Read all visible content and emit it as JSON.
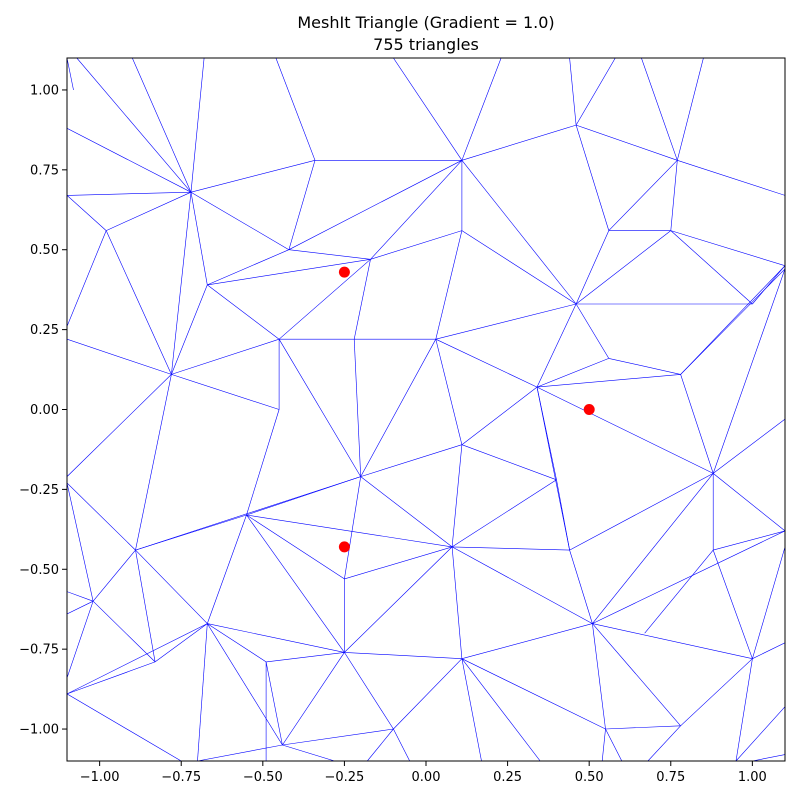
{
  "chart_data": {
    "type": "scatter",
    "title": "MeshIt Triangle (Gradient = 1.0)",
    "subtitle": "755 triangles",
    "xlabel": "",
    "ylabel": "",
    "xlim": [
      -1.1,
      1.1
    ],
    "ylim": [
      -1.1,
      1.1
    ],
    "grid": false,
    "legend": "none",
    "x_ticks": [
      -1.0,
      -0.75,
      -0.5,
      -0.25,
      0.0,
      0.25,
      0.5,
      0.75,
      1.0
    ],
    "x_tick_labels": [
      "−1.00",
      "−0.75",
      "−0.50",
      "−0.25",
      "0.00",
      "0.25",
      "0.50",
      "0.75",
      "1.00"
    ],
    "y_ticks": [
      1.0,
      0.75,
      0.5,
      0.25,
      0.0,
      -0.25,
      -0.5,
      -0.75,
      -1.0
    ],
    "y_tick_labels": [
      "1.00",
      "0.75",
      "0.50",
      "0.25",
      "0.00",
      "−0.25",
      "−0.50",
      "−0.75",
      "−1.00"
    ],
    "mesh_color": "#0000ff",
    "point_color": "#ff0000",
    "points": [
      {
        "x": -0.25,
        "y": 0.43
      },
      {
        "x": 0.5,
        "y": 0.0
      },
      {
        "x": -0.25,
        "y": -0.43
      }
    ],
    "mesh_edges": [
      [
        [
          -1.1,
          1.1
        ],
        [
          -1.08,
          1.0
        ]
      ],
      [
        [
          -1.07,
          1.1
        ],
        [
          -0.72,
          0.68
        ]
      ],
      [
        [
          -1.1,
          0.88
        ],
        [
          -0.72,
          0.68
        ]
      ],
      [
        [
          -0.9,
          1.1
        ],
        [
          -0.72,
          0.68
        ]
      ],
      [
        [
          -0.68,
          1.1
        ],
        [
          -0.72,
          0.68
        ]
      ],
      [
        [
          -1.1,
          0.67
        ],
        [
          -0.72,
          0.68
        ]
      ],
      [
        [
          -1.1,
          0.67
        ],
        [
          -0.98,
          0.56
        ]
      ],
      [
        [
          -0.98,
          0.56
        ],
        [
          -1.1,
          0.26
        ]
      ],
      [
        [
          -0.98,
          0.56
        ],
        [
          -0.72,
          0.68
        ]
      ],
      [
        [
          -0.98,
          0.56
        ],
        [
          -0.78,
          0.11
        ]
      ],
      [
        [
          -0.72,
          0.68
        ],
        [
          -0.78,
          0.11
        ]
      ],
      [
        [
          -0.72,
          0.68
        ],
        [
          -0.67,
          0.39
        ]
      ],
      [
        [
          -0.72,
          0.68
        ],
        [
          -0.34,
          0.78
        ]
      ],
      [
        [
          -0.72,
          0.68
        ],
        [
          -0.42,
          0.5
        ]
      ],
      [
        [
          -0.46,
          1.1
        ],
        [
          -0.34,
          0.78
        ]
      ],
      [
        [
          -0.34,
          0.78
        ],
        [
          0.11,
          0.78
        ]
      ],
      [
        [
          -0.34,
          0.78
        ],
        [
          -0.42,
          0.5
        ]
      ],
      [
        [
          -0.1,
          1.1
        ],
        [
          0.11,
          0.78
        ]
      ],
      [
        [
          0.11,
          0.78
        ],
        [
          0.23,
          1.1
        ]
      ],
      [
        [
          0.11,
          0.78
        ],
        [
          -0.42,
          0.5
        ]
      ],
      [
        [
          0.11,
          0.78
        ],
        [
          -0.17,
          0.47
        ]
      ],
      [
        [
          0.11,
          0.78
        ],
        [
          0.11,
          0.56
        ]
      ],
      [
        [
          0.11,
          0.78
        ],
        [
          0.46,
          0.89
        ]
      ],
      [
        [
          0.11,
          0.78
        ],
        [
          0.46,
          0.33
        ]
      ],
      [
        [
          0.46,
          0.89
        ],
        [
          0.44,
          1.1
        ]
      ],
      [
        [
          0.46,
          0.89
        ],
        [
          0.56,
          0.56
        ]
      ],
      [
        [
          0.46,
          0.89
        ],
        [
          0.77,
          0.78
        ]
      ],
      [
        [
          0.46,
          0.89
        ],
        [
          0.58,
          1.1
        ]
      ],
      [
        [
          0.77,
          0.78
        ],
        [
          0.66,
          1.1
        ]
      ],
      [
        [
          0.77,
          0.78
        ],
        [
          0.85,
          1.1
        ]
      ],
      [
        [
          0.77,
          0.78
        ],
        [
          1.1,
          0.67
        ]
      ],
      [
        [
          0.77,
          0.78
        ],
        [
          0.56,
          0.56
        ]
      ],
      [
        [
          0.77,
          0.78
        ],
        [
          0.75,
          0.56
        ]
      ],
      [
        [
          0.56,
          0.56
        ],
        [
          0.75,
          0.56
        ]
      ],
      [
        [
          0.56,
          0.56
        ],
        [
          0.46,
          0.33
        ]
      ],
      [
        [
          0.75,
          0.56
        ],
        [
          1.1,
          0.45
        ]
      ],
      [
        [
          0.75,
          0.56
        ],
        [
          1.0,
          0.33
        ]
      ],
      [
        [
          0.75,
          0.56
        ],
        [
          0.46,
          0.33
        ]
      ],
      [
        [
          1.1,
          0.45
        ],
        [
          1.0,
          0.33
        ]
      ],
      [
        [
          1.1,
          0.45
        ],
        [
          0.78,
          0.11
        ]
      ],
      [
        [
          1.1,
          0.44
        ],
        [
          0.78,
          0.11
        ]
      ],
      [
        [
          1.0,
          0.33
        ],
        [
          0.46,
          0.33
        ]
      ],
      [
        [
          0.46,
          0.33
        ],
        [
          0.11,
          0.56
        ]
      ],
      [
        [
          0.46,
          0.33
        ],
        [
          0.03,
          0.22
        ]
      ],
      [
        [
          0.46,
          0.33
        ],
        [
          0.34,
          0.07
        ]
      ],
      [
        [
          0.46,
          0.33
        ],
        [
          0.56,
          0.16
        ]
      ],
      [
        [
          0.56,
          0.16
        ],
        [
          0.78,
          0.11
        ]
      ],
      [
        [
          0.56,
          0.16
        ],
        [
          0.34,
          0.07
        ]
      ],
      [
        [
          0.34,
          0.07
        ],
        [
          0.78,
          0.11
        ]
      ],
      [
        [
          0.34,
          0.07
        ],
        [
          0.03,
          0.22
        ]
      ],
      [
        [
          0.34,
          0.07
        ],
        [
          0.11,
          -0.11
        ]
      ],
      [
        [
          0.34,
          0.07
        ],
        [
          0.4,
          -0.22
        ]
      ],
      [
        [
          0.34,
          0.07
        ],
        [
          0.44,
          -0.44
        ]
      ],
      [
        [
          0.34,
          0.07
        ],
        [
          0.88,
          -0.2
        ]
      ],
      [
        [
          0.78,
          0.11
        ],
        [
          0.88,
          -0.2
        ]
      ],
      [
        [
          1.1,
          0.44
        ],
        [
          0.88,
          -0.2
        ]
      ],
      [
        [
          1.1,
          -0.03
        ],
        [
          0.88,
          -0.2
        ]
      ],
      [
        [
          0.88,
          -0.2
        ],
        [
          1.1,
          -0.38
        ]
      ],
      [
        [
          0.88,
          -0.2
        ],
        [
          0.44,
          -0.44
        ]
      ],
      [
        [
          0.88,
          -0.2
        ],
        [
          0.88,
          -0.44
        ]
      ],
      [
        [
          0.88,
          -0.2
        ],
        [
          0.51,
          -0.67
        ]
      ],
      [
        [
          0.88,
          -0.44
        ],
        [
          1.1,
          -0.38
        ]
      ],
      [
        [
          0.88,
          -0.44
        ],
        [
          0.67,
          -0.7
        ]
      ],
      [
        [
          0.88,
          -0.44
        ],
        [
          1.0,
          -0.78
        ]
      ],
      [
        [
          1.1,
          -0.38
        ],
        [
          0.51,
          -0.67
        ]
      ],
      [
        [
          1.1,
          -0.43
        ],
        [
          1.0,
          -0.78
        ]
      ],
      [
        [
          0.51,
          -0.67
        ],
        [
          1.0,
          -0.78
        ]
      ],
      [
        [
          0.51,
          -0.67
        ],
        [
          0.44,
          -0.44
        ]
      ],
      [
        [
          0.51,
          -0.67
        ],
        [
          0.08,
          -0.43
        ]
      ],
      [
        [
          0.51,
          -0.67
        ],
        [
          0.11,
          -0.78
        ]
      ],
      [
        [
          0.51,
          -0.67
        ],
        [
          0.78,
          -0.99
        ]
      ],
      [
        [
          0.51,
          -0.67
        ],
        [
          0.55,
          -1.0
        ]
      ],
      [
        [
          1.0,
          -0.78
        ],
        [
          1.1,
          -0.73
        ]
      ],
      [
        [
          1.0,
          -0.78
        ],
        [
          0.78,
          -0.99
        ]
      ],
      [
        [
          1.0,
          -0.78
        ],
        [
          0.95,
          -1.1
        ]
      ],
      [
        [
          1.1,
          -0.93
        ],
        [
          0.95,
          -1.1
        ]
      ],
      [
        [
          1.1,
          -1.08
        ],
        [
          1.0,
          -1.1
        ]
      ],
      [
        [
          0.78,
          -0.99
        ],
        [
          0.55,
          -1.0
        ]
      ],
      [
        [
          0.78,
          -0.99
        ],
        [
          0.68,
          -1.1
        ]
      ],
      [
        [
          0.55,
          -1.0
        ],
        [
          0.54,
          -1.1
        ]
      ],
      [
        [
          0.55,
          -1.0
        ],
        [
          0.6,
          -1.1
        ]
      ],
      [
        [
          0.11,
          -0.78
        ],
        [
          0.55,
          -1.0
        ]
      ],
      [
        [
          0.11,
          -0.78
        ],
        [
          0.17,
          -1.1
        ]
      ],
      [
        [
          0.11,
          -0.78
        ],
        [
          -0.1,
          -1.0
        ]
      ],
      [
        [
          0.11,
          -0.78
        ],
        [
          0.08,
          -0.43
        ]
      ],
      [
        [
          0.11,
          -0.78
        ],
        [
          -0.25,
          -0.76
        ]
      ],
      [
        [
          0.11,
          -0.78
        ],
        [
          0.35,
          -1.1
        ]
      ],
      [
        [
          -0.1,
          -1.0
        ],
        [
          -0.44,
          -1.05
        ]
      ],
      [
        [
          -0.1,
          -1.0
        ],
        [
          -0.25,
          -0.76
        ]
      ],
      [
        [
          -0.1,
          -1.0
        ],
        [
          -0.05,
          -1.1
        ]
      ],
      [
        [
          -0.1,
          -1.0
        ],
        [
          -0.18,
          -1.1
        ]
      ],
      [
        [
          -0.25,
          -0.76
        ],
        [
          -0.44,
          -1.05
        ]
      ],
      [
        [
          -0.25,
          -0.76
        ],
        [
          -0.67,
          -0.67
        ]
      ],
      [
        [
          -0.25,
          -0.76
        ],
        [
          -0.49,
          -0.79
        ]
      ],
      [
        [
          -0.25,
          -0.76
        ],
        [
          -0.25,
          -0.53
        ]
      ],
      [
        [
          -0.25,
          -0.76
        ],
        [
          0.08,
          -0.43
        ]
      ],
      [
        [
          -0.25,
          -0.76
        ],
        [
          -0.55,
          -0.33
        ]
      ],
      [
        [
          -0.44,
          -1.05
        ],
        [
          -0.67,
          -0.67
        ]
      ],
      [
        [
          -0.44,
          -1.05
        ],
        [
          -0.49,
          -0.79
        ]
      ],
      [
        [
          -0.44,
          -1.05
        ],
        [
          -0.7,
          -1.1
        ]
      ],
      [
        [
          -0.44,
          -1.05
        ],
        [
          -0.28,
          -1.1
        ]
      ],
      [
        [
          -0.49,
          -0.79
        ],
        [
          -0.67,
          -0.67
        ]
      ],
      [
        [
          -0.49,
          -0.79
        ],
        [
          -0.49,
          -1.1
        ]
      ],
      [
        [
          -0.67,
          -0.67
        ],
        [
          -0.7,
          -1.1
        ]
      ],
      [
        [
          -0.67,
          -0.67
        ],
        [
          -0.83,
          -0.79
        ]
      ],
      [
        [
          -0.67,
          -0.67
        ],
        [
          -0.89,
          -0.44
        ]
      ],
      [
        [
          -0.67,
          -0.67
        ],
        [
          -0.55,
          -0.33
        ]
      ],
      [
        [
          -0.67,
          -0.67
        ],
        [
          -1.1,
          -0.89
        ]
      ],
      [
        [
          -0.83,
          -0.79
        ],
        [
          -0.89,
          -0.44
        ]
      ],
      [
        [
          -0.83,
          -0.79
        ],
        [
          -1.02,
          -0.6
        ]
      ],
      [
        [
          -0.83,
          -0.79
        ],
        [
          -1.1,
          -0.89
        ]
      ],
      [
        [
          -1.1,
          -0.89
        ],
        [
          -0.75,
          -1.1
        ]
      ],
      [
        [
          -1.02,
          -0.6
        ],
        [
          -1.1,
          -0.57
        ]
      ],
      [
        [
          -1.02,
          -0.6
        ],
        [
          -1.1,
          -0.64
        ]
      ],
      [
        [
          -1.02,
          -0.6
        ],
        [
          -1.1,
          -0.84
        ]
      ],
      [
        [
          -1.02,
          -0.6
        ],
        [
          -1.1,
          -0.23
        ]
      ],
      [
        [
          -1.02,
          -0.6
        ],
        [
          -0.89,
          -0.44
        ]
      ],
      [
        [
          -0.89,
          -0.44
        ],
        [
          -1.1,
          -0.23
        ]
      ],
      [
        [
          -0.89,
          -0.44
        ],
        [
          -0.78,
          0.11
        ]
      ],
      [
        [
          -0.89,
          -0.44
        ],
        [
          -0.55,
          -0.33
        ]
      ],
      [
        [
          -0.89,
          -0.44
        ],
        [
          -0.2,
          -0.21
        ]
      ],
      [
        [
          -1.1,
          -0.21
        ],
        [
          -0.78,
          0.11
        ]
      ],
      [
        [
          -1.1,
          0.22
        ],
        [
          -0.78,
          0.11
        ]
      ],
      [
        [
          -0.78,
          0.11
        ],
        [
          -0.67,
          0.39
        ]
      ],
      [
        [
          -0.78,
          0.11
        ],
        [
          -0.45,
          0.22
        ]
      ],
      [
        [
          -0.78,
          0.11
        ],
        [
          -0.45,
          0.0
        ]
      ],
      [
        [
          -0.67,
          0.39
        ],
        [
          -0.45,
          0.22
        ]
      ],
      [
        [
          -0.67,
          0.39
        ],
        [
          -0.17,
          0.47
        ]
      ],
      [
        [
          -0.67,
          0.39
        ],
        [
          -0.42,
          0.5
        ]
      ],
      [
        [
          -0.42,
          0.5
        ],
        [
          -0.17,
          0.47
        ]
      ],
      [
        [
          -0.17,
          0.47
        ],
        [
          -0.45,
          0.22
        ]
      ],
      [
        [
          -0.17,
          0.47
        ],
        [
          -0.22,
          0.22
        ]
      ],
      [
        [
          -0.17,
          0.47
        ],
        [
          0.11,
          0.56
        ]
      ],
      [
        [
          0.11,
          0.56
        ],
        [
          0.03,
          0.22
        ]
      ],
      [
        [
          -0.45,
          0.22
        ],
        [
          0.03,
          0.22
        ]
      ],
      [
        [
          -0.45,
          0.22
        ],
        [
          -0.45,
          0.0
        ]
      ],
      [
        [
          -0.45,
          0.22
        ],
        [
          -0.2,
          -0.21
        ]
      ],
      [
        [
          -0.22,
          0.22
        ],
        [
          -0.2,
          -0.21
        ]
      ],
      [
        [
          0.03,
          0.22
        ],
        [
          -0.2,
          -0.21
        ]
      ],
      [
        [
          0.03,
          0.22
        ],
        [
          0.11,
          -0.11
        ]
      ],
      [
        [
          -0.45,
          0.0
        ],
        [
          -0.55,
          -0.33
        ]
      ],
      [
        [
          -0.55,
          -0.33
        ],
        [
          -0.2,
          -0.21
        ]
      ],
      [
        [
          -0.55,
          -0.33
        ],
        [
          0.08,
          -0.43
        ]
      ],
      [
        [
          -0.2,
          -0.21
        ],
        [
          0.11,
          -0.11
        ]
      ],
      [
        [
          -0.2,
          -0.21
        ],
        [
          -0.25,
          -0.53
        ]
      ],
      [
        [
          -0.2,
          -0.21
        ],
        [
          0.08,
          -0.43
        ]
      ],
      [
        [
          0.11,
          -0.11
        ],
        [
          0.08,
          -0.43
        ]
      ],
      [
        [
          0.11,
          -0.11
        ],
        [
          0.4,
          -0.22
        ]
      ],
      [
        [
          0.4,
          -0.22
        ],
        [
          0.44,
          -0.44
        ]
      ],
      [
        [
          0.4,
          -0.22
        ],
        [
          0.08,
          -0.43
        ]
      ],
      [
        [
          0.08,
          -0.43
        ],
        [
          0.44,
          -0.44
        ]
      ],
      [
        [
          -0.25,
          -0.53
        ],
        [
          0.08,
          -0.43
        ]
      ],
      [
        [
          -0.25,
          -0.53
        ],
        [
          -0.55,
          -0.33
        ]
      ]
    ]
  }
}
